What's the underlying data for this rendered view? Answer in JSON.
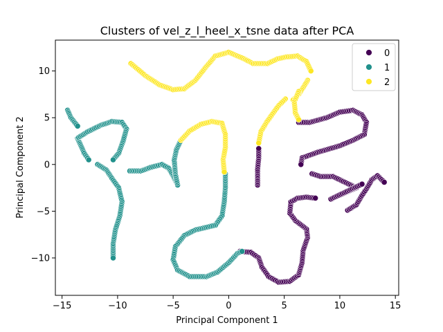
{
  "chart_data": {
    "type": "scatter",
    "title": "Clusters of vel_z_l_heel_x_tsne data after PCA",
    "xlabel": "Principal Component 1",
    "ylabel": "Principal Component 2",
    "xlim": [
      -15.6,
      15.3
    ],
    "ylim": [
      -14.0,
      13.3
    ],
    "xticks": [
      -15,
      -10,
      -5,
      0,
      5,
      10,
      15
    ],
    "yticks": [
      -10,
      -5,
      0,
      5,
      10
    ],
    "grid": false,
    "legend": {
      "placement": "top-right",
      "entries": [
        "0",
        "1",
        "2"
      ]
    },
    "colors": {
      "0": "#440154",
      "1": "#21918c",
      "2": "#fde725"
    },
    "series": [
      {
        "name": "0",
        "paths": [
          [
            [
              1.0,
              -9.3
            ],
            [
              2.0,
              -9.4
            ],
            [
              2.7,
              -10.0
            ],
            [
              3.0,
              -11.0
            ],
            [
              3.6,
              -12.0
            ],
            [
              4.5,
              -12.6
            ],
            [
              5.5,
              -12.5
            ],
            [
              6.3,
              -11.8
            ],
            [
              6.6,
              -10.5
            ],
            [
              6.7,
              -9.2
            ],
            [
              7.1,
              -7.8
            ],
            [
              7.0,
              -6.9
            ],
            [
              6.0,
              -6.0
            ],
            [
              5.5,
              -5.2
            ],
            [
              5.6,
              -4.0
            ],
            [
              6.2,
              -3.6
            ],
            [
              7.0,
              -3.5
            ],
            [
              7.8,
              -3.6
            ]
          ],
          [
            [
              2.6,
              -2.2
            ],
            [
              2.6,
              -0.5
            ],
            [
              2.7,
              0.7
            ],
            [
              2.7,
              1.7
            ]
          ],
          [
            [
              6.3,
              4.5
            ],
            [
              7.3,
              4.5
            ],
            [
              8.8,
              5.0
            ],
            [
              10.0,
              5.6
            ],
            [
              11.2,
              5.8
            ],
            [
              12.0,
              5.3
            ],
            [
              12.4,
              4.5
            ],
            [
              12.2,
              3.2
            ],
            [
              11.2,
              2.6
            ],
            [
              10.0,
              2.0
            ],
            [
              8.0,
              1.3
            ],
            [
              6.6,
              0.7
            ],
            [
              6.5,
              0.0
            ]
          ],
          [
            [
              10.7,
              -4.9
            ],
            [
              11.5,
              -4.3
            ],
            [
              12.0,
              -3.3
            ],
            [
              12.4,
              -2.6
            ],
            [
              12.9,
              -1.6
            ],
            [
              13.4,
              -1.2
            ],
            [
              14.0,
              -1.9
            ]
          ],
          [
            [
              7.5,
              -1.0
            ],
            [
              8.3,
              -1.3
            ],
            [
              9.4,
              -1.3
            ],
            [
              11.5,
              -2.5
            ],
            [
              9.2,
              -3.7
            ],
            [
              12.0,
              -2.1
            ]
          ]
        ]
      },
      {
        "name": "1",
        "paths": [
          [
            [
              -14.5,
              5.8
            ],
            [
              -14.2,
              5.0
            ],
            [
              -13.6,
              4.1
            ]
          ],
          [
            [
              -13.6,
              2.8
            ],
            [
              -13.3,
              2.0
            ],
            [
              -13.0,
              1.2
            ],
            [
              -12.6,
              0.5
            ]
          ],
          [
            [
              -13.5,
              2.9
            ],
            [
              -12.7,
              3.5
            ],
            [
              -11.5,
              4.2
            ],
            [
              -10.5,
              4.6
            ],
            [
              -9.6,
              4.5
            ],
            [
              -9.2,
              3.8
            ],
            [
              -9.5,
              2.5
            ],
            [
              -9.9,
              1.2
            ],
            [
              -10.4,
              0.5
            ]
          ],
          [
            [
              -11.8,
              0.0
            ],
            [
              -11.0,
              -0.6
            ],
            [
              -10.5,
              -1.5
            ],
            [
              -9.9,
              -2.5
            ],
            [
              -9.6,
              -4.0
            ],
            [
              -9.8,
              -5.5
            ],
            [
              -10.2,
              -7.0
            ],
            [
              -10.4,
              -8.5
            ],
            [
              -10.4,
              -10.0
            ]
          ],
          [
            [
              -8.9,
              -0.7
            ],
            [
              -7.9,
              -0.7
            ],
            [
              -7.0,
              -0.3
            ],
            [
              -6.0,
              0.0
            ],
            [
              -5.4,
              -0.4
            ],
            [
              -5.0,
              -1.2
            ],
            [
              -4.6,
              -2.2
            ],
            [
              -4.8,
              -1.0
            ],
            [
              -4.9,
              0.5
            ],
            [
              -4.7,
              1.6
            ],
            [
              -4.3,
              2.6
            ]
          ],
          [
            [
              -0.3,
              -1.0
            ],
            [
              -0.3,
              -2.5
            ],
            [
              -0.4,
              -4.0
            ],
            [
              -0.6,
              -5.5
            ],
            [
              -1.2,
              -6.5
            ],
            [
              -3.0,
              -7.0
            ],
            [
              -4.0,
              -7.6
            ],
            [
              -4.8,
              -8.8
            ],
            [
              -5.0,
              -10.2
            ],
            [
              -4.6,
              -11.3
            ],
            [
              -3.5,
              -12.0
            ],
            [
              -2.0,
              -12.0
            ],
            [
              -1.0,
              -11.5
            ],
            [
              0.0,
              -10.5
            ],
            [
              0.8,
              -9.5
            ],
            [
              1.2,
              -9.3
            ]
          ]
        ]
      },
      {
        "name": "2",
        "paths": [
          [
            [
              -8.8,
              10.8
            ],
            [
              -7.5,
              9.5
            ],
            [
              -6.2,
              8.5
            ],
            [
              -5.0,
              8.0
            ],
            [
              -4.0,
              8.1
            ],
            [
              -3.0,
              9.0
            ],
            [
              -2.0,
              10.5
            ],
            [
              -1.2,
              11.6
            ],
            [
              0.0,
              12.0
            ],
            [
              1.2,
              11.4
            ],
            [
              2.2,
              10.8
            ],
            [
              3.5,
              10.8
            ],
            [
              4.4,
              11.3
            ],
            [
              5.2,
              11.5
            ],
            [
              6.2,
              11.6
            ],
            [
              7.0,
              11.0
            ],
            [
              7.4,
              10.0
            ]
          ],
          [
            [
              7.1,
              9.0
            ],
            [
              6.8,
              8.4
            ],
            [
              6.3,
              7.5
            ],
            [
              5.8,
              6.9
            ]
          ],
          [
            [
              6.3,
              7.8
            ],
            [
              5.9,
              6.7
            ],
            [
              6.0,
              5.5
            ],
            [
              6.3,
              4.8
            ]
          ],
          [
            [
              5.1,
              7.0
            ],
            [
              4.5,
              6.3
            ],
            [
              4.0,
              5.5
            ],
            [
              3.4,
              4.5
            ],
            [
              2.9,
              3.5
            ],
            [
              2.7,
              2.3
            ]
          ],
          [
            [
              -4.3,
              2.6
            ],
            [
              -3.5,
              3.6
            ],
            [
              -2.5,
              4.3
            ],
            [
              -1.5,
              4.6
            ],
            [
              -0.6,
              4.4
            ],
            [
              -0.3,
              3.2
            ],
            [
              -0.3,
              1.8
            ],
            [
              -0.5,
              0.5
            ],
            [
              -0.4,
              -0.8
            ]
          ]
        ]
      }
    ]
  }
}
